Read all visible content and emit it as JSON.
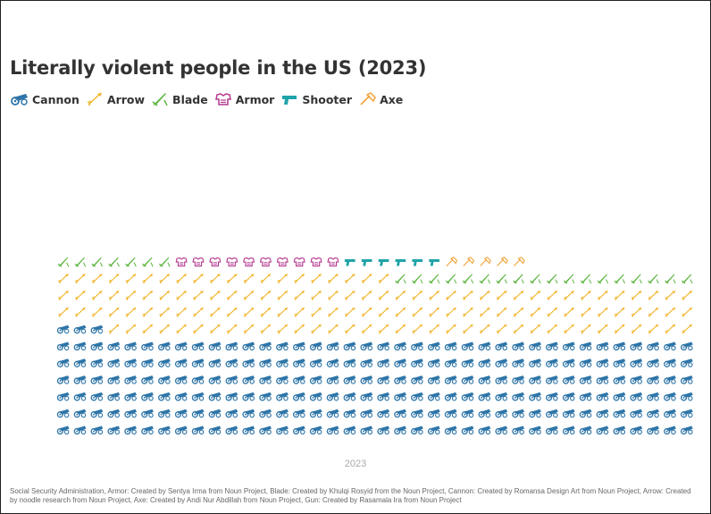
{
  "chart_data": {
    "type": "waffle",
    "title": "Literally violent people in the US (2023)",
    "x_category": "2023",
    "series": [
      {
        "name": "Cannon",
        "value": 231,
        "color": "#2e75a8",
        "icon": "cannon-icon"
      },
      {
        "name": "Arrow",
        "value": 131,
        "color": "#f2b62f",
        "icon": "arrow-icon"
      },
      {
        "name": "Blade",
        "value": 25,
        "color": "#5bb53e",
        "icon": "blade-icon"
      },
      {
        "name": "Armor",
        "value": 10,
        "color": "#b4378f",
        "icon": "armor-icon"
      },
      {
        "name": "Shooter",
        "value": 6,
        "color": "#1fa3a8",
        "icon": "shooter-icon"
      },
      {
        "name": "Axe",
        "value": 5,
        "color": "#f2a33a",
        "icon": "axe-icon"
      }
    ]
  },
  "source": "Social Security Administration, Armor: Created by Sentya Irma from Noun Project, Blade: Created by Khulqi Rosyid from the Noun Project, Cannon: Created by Romansa Design Art from Noun Project, Arrow: Created by noodle research from Noun Project, Axe: Created by Andi Nur Abdillah from Noun Project, Gun: Created by Rasamala Ira from Noun Project"
}
